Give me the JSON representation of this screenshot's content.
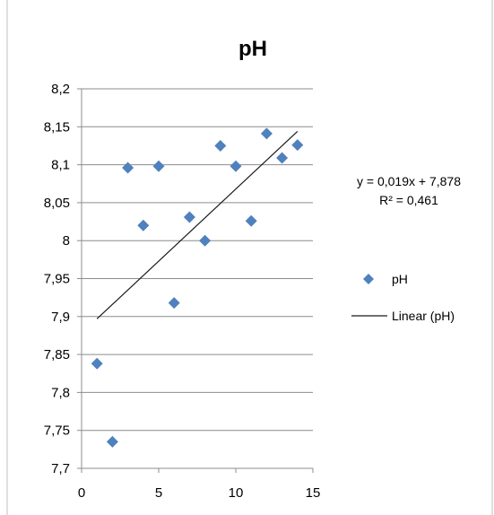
{
  "chart_data": {
    "type": "scatter",
    "title": "pH",
    "xlabel": "",
    "ylabel": "",
    "xlim": [
      0,
      15
    ],
    "ylim": [
      7.7,
      8.2
    ],
    "x_ticks": [
      0,
      5,
      10,
      15
    ],
    "x_tick_labels": [
      "0",
      "5",
      "10",
      "15"
    ],
    "y_ticks": [
      7.7,
      7.75,
      7.8,
      7.85,
      7.9,
      7.95,
      8.0,
      8.05,
      8.1,
      8.15,
      8.2
    ],
    "y_tick_labels": [
      "7,7",
      "7,75",
      "7,8",
      "7,85",
      "7,9",
      "7,95",
      "8",
      "8,05",
      "8,1",
      "8,15",
      "8,2"
    ],
    "grid": "horizontal",
    "series": [
      {
        "name": "pH",
        "color": "#4f81bd",
        "marker": "diamond",
        "x": [
          1,
          2,
          3,
          4,
          5,
          6,
          7,
          8,
          9,
          10,
          11,
          12,
          13,
          14
        ],
        "y": [
          7.838,
          7.735,
          8.096,
          8.02,
          8.098,
          7.918,
          8.031,
          8.0,
          8.125,
          8.098,
          8.026,
          8.141,
          8.109,
          8.126
        ]
      }
    ],
    "trendline": {
      "name": "Linear (pH)",
      "type": "linear",
      "slope": 0.019,
      "intercept": 7.878,
      "x_range": [
        1,
        14
      ],
      "color": "#1a1a1a",
      "equation_text": "y = 0,019x + 7,878",
      "r2_text": "R² = 0,461"
    },
    "legend": {
      "placement": "right",
      "entries": [
        "pH",
        "Linear (pH)"
      ]
    }
  }
}
